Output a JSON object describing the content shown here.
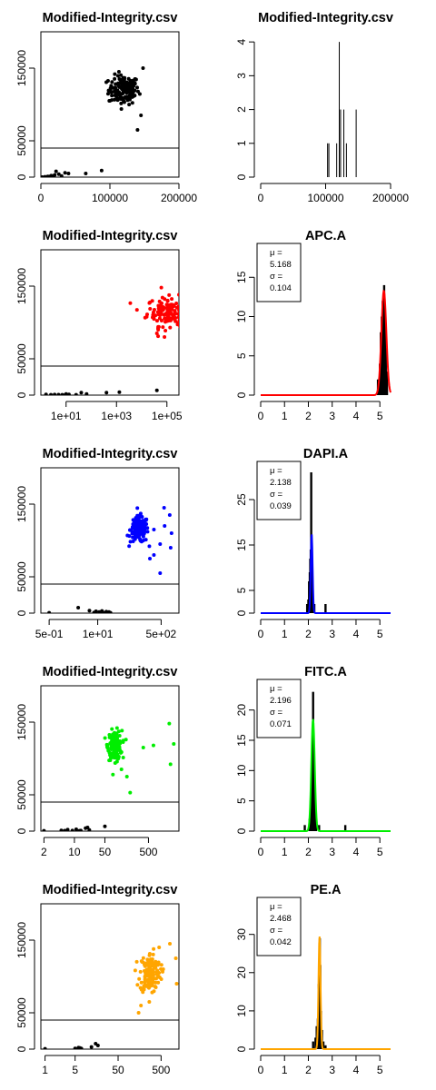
{
  "chart_data": [
    {
      "type": "scatter",
      "title": "Modified-Integrity.csv",
      "xscale": "linear",
      "xlim": [
        0,
        200000
      ],
      "ylim": [
        0,
        200000
      ],
      "xticks": [
        {
          "v": 0,
          "label": "0"
        },
        {
          "v": 100000,
          "label": "100000"
        },
        {
          "v": 200000,
          "label": "200000"
        }
      ],
      "yticks": [
        {
          "v": 0,
          "label": "0"
        },
        {
          "v": 50000,
          "label": "50000"
        },
        {
          "v": 150000,
          "label": "150000"
        }
      ],
      "threshold": 40000,
      "gate_color": "#000000",
      "cluster": {
        "cx": 120000,
        "cy": 120000,
        "sx": 11000,
        "sy": 10000,
        "n": 150
      },
      "extra_points": [
        [
          148000,
          150000
        ],
        [
          140000,
          65000
        ],
        [
          145000,
          85000
        ],
        [
          100000,
          105000
        ]
      ],
      "low_points": [
        [
          2000,
          0
        ],
        [
          6000,
          500
        ],
        [
          10000,
          1000
        ],
        [
          15000,
          2000
        ],
        [
          20000,
          3000
        ],
        [
          22000,
          8000
        ],
        [
          26000,
          4000
        ],
        [
          30000,
          1500
        ],
        [
          35000,
          6000
        ],
        [
          40000,
          5000
        ],
        [
          65000,
          5000
        ],
        [
          88000,
          9000
        ],
        [
          12000,
          800
        ],
        [
          18000,
          1200
        ]
      ]
    },
    {
      "type": "bar",
      "title": "Modified-Integrity.csv",
      "xlim": [
        0,
        200000
      ],
      "ylim": [
        0,
        4.3
      ],
      "xticks": [
        {
          "v": 0,
          "label": "0"
        },
        {
          "v": 100000,
          "label": "100000"
        },
        {
          "v": 200000,
          "label": "200000"
        }
      ],
      "yticks": [
        {
          "v": 0,
          "label": "0"
        },
        {
          "v": 1,
          "label": "1"
        },
        {
          "v": 2,
          "label": "2"
        },
        {
          "v": 3,
          "label": "3"
        },
        {
          "v": 4,
          "label": "4"
        }
      ],
      "bars": [
        [
          103000,
          1
        ],
        [
          105000,
          1
        ],
        [
          117000,
          1
        ],
        [
          121000,
          4
        ],
        [
          123000,
          2
        ],
        [
          128000,
          2
        ],
        [
          132000,
          1
        ],
        [
          147000,
          2
        ]
      ]
    },
    {
      "type": "scatter",
      "title": "Modified-Integrity.csv",
      "xscale": "log",
      "xlim": [
        1,
        300000
      ],
      "ylim": [
        0,
        200000
      ],
      "xticks": [
        {
          "v": 10,
          "label": "1e+01"
        },
        {
          "v": 1000,
          "label": "1e+03"
        },
        {
          "v": 100000,
          "label": "1e+05"
        }
      ],
      "yticks": [
        {
          "v": 0,
          "label": "0"
        },
        {
          "v": 50000,
          "label": "50000"
        },
        {
          "v": 150000,
          "label": "150000"
        }
      ],
      "threshold": 40000,
      "gate_color": "#ff0000",
      "cluster": {
        "cx": 130000,
        "cy": 115000,
        "sx": 0.45,
        "sy": 10000,
        "n": 150
      },
      "extra_points": [
        [
          60000,
          148000
        ],
        [
          45000,
          90000
        ],
        [
          40000,
          85000
        ],
        [
          80000,
          80000
        ]
      ],
      "low_points": [
        [
          1.6,
          1000
        ],
        [
          2.5,
          500
        ],
        [
          3.5,
          800
        ],
        [
          5,
          600
        ],
        [
          7,
          400
        ],
        [
          10,
          1500
        ],
        [
          13,
          900
        ],
        [
          25,
          500
        ],
        [
          40,
          3500
        ],
        [
          65,
          1500
        ],
        [
          400,
          3500
        ],
        [
          1300,
          4000
        ],
        [
          40000,
          6500
        ],
        [
          7.5,
          200
        ]
      ]
    },
    {
      "type": "histogram",
      "title": "APC.A",
      "xlim": [
        0,
        5.45
      ],
      "ylim": [
        0,
        18.5
      ],
      "xticks": [
        {
          "v": 0,
          "label": "0"
        },
        {
          "v": 1,
          "label": "1"
        },
        {
          "v": 2,
          "label": "2"
        },
        {
          "v": 3,
          "label": "3"
        },
        {
          "v": 4,
          "label": "4"
        },
        {
          "v": 5,
          "label": "5"
        }
      ],
      "yticks": [
        {
          "v": 0,
          "label": "0"
        },
        {
          "v": 5,
          "label": "5"
        },
        {
          "v": 10,
          "label": "10"
        },
        {
          "v": 15,
          "label": "15"
        }
      ],
      "bars": [
        [
          4.92,
          2
        ],
        [
          4.96,
          1
        ],
        [
          5.0,
          4
        ],
        [
          5.04,
          8
        ],
        [
          5.08,
          10
        ],
        [
          5.12,
          12
        ],
        [
          5.14,
          9
        ],
        [
          5.16,
          13
        ],
        [
          5.18,
          14
        ],
        [
          5.2,
          10
        ],
        [
          5.22,
          8
        ],
        [
          5.25,
          6
        ],
        [
          5.3,
          3
        ]
      ],
      "fit_color": "#ff0000",
      "mu": 5.168,
      "sigma": 0.104,
      "peak": 13.3,
      "stats": {
        "mu_label": "μ =",
        "mu": "5.168",
        "sigma_label": "σ =",
        "sigma": "0.104"
      }
    },
    {
      "type": "scatter",
      "title": "Modified-Integrity.csv",
      "xscale": "log",
      "xlim": [
        0.3,
        1500
      ],
      "ylim": [
        0,
        200000
      ],
      "xticks": [
        {
          "v": 0.5,
          "label": "5e-01"
        },
        {
          "v": 10,
          "label": "1e+01"
        },
        {
          "v": 500,
          "label": "5e+02"
        }
      ],
      "yticks": [
        {
          "v": 0,
          "label": "0"
        },
        {
          "v": 50000,
          "label": "50000"
        },
        {
          "v": 150000,
          "label": "150000"
        }
      ],
      "threshold": 40000,
      "gate_color": "#0000ff",
      "cluster": {
        "cx": 130,
        "cy": 115000,
        "sx": 0.12,
        "sy": 9000,
        "n": 150
      },
      "extra_points": [
        [
          600,
          145000
        ],
        [
          850,
          135000
        ],
        [
          620,
          120000
        ],
        [
          320,
          115000
        ],
        [
          950,
          110000
        ],
        [
          900,
          90000
        ],
        [
          320,
          80000
        ],
        [
          470,
          55000
        ],
        [
          250,
          75000
        ],
        [
          470,
          95000
        ]
      ],
      "low_points": [
        [
          0.5,
          500
        ],
        [
          3,
          7500
        ],
        [
          6,
          3500
        ],
        [
          8,
          500
        ],
        [
          9,
          2500
        ],
        [
          11,
          1500
        ],
        [
          13,
          3000
        ],
        [
          15,
          500
        ],
        [
          17,
          2000
        ],
        [
          20,
          1500
        ],
        [
          22,
          500
        ],
        [
          8,
          800
        ],
        [
          12,
          700
        ]
      ]
    },
    {
      "type": "histogram",
      "title": "DAPI.A",
      "xlim": [
        0,
        5.45
      ],
      "ylim": [
        0,
        32
      ],
      "xticks": [
        {
          "v": 0,
          "label": "0"
        },
        {
          "v": 1,
          "label": "1"
        },
        {
          "v": 2,
          "label": "2"
        },
        {
          "v": 3,
          "label": "3"
        },
        {
          "v": 4,
          "label": "4"
        },
        {
          "v": 5,
          "label": "5"
        }
      ],
      "yticks": [
        {
          "v": 0,
          "label": "0"
        },
        {
          "v": 5,
          "label": "5"
        },
        {
          "v": 15,
          "label": "15"
        },
        {
          "v": 25,
          "label": "25"
        }
      ],
      "bars": [
        [
          1.95,
          2
        ],
        [
          2.0,
          3
        ],
        [
          2.03,
          7
        ],
        [
          2.06,
          9
        ],
        [
          2.08,
          12
        ],
        [
          2.1,
          14
        ],
        [
          2.12,
          31
        ],
        [
          2.14,
          15
        ],
        [
          2.16,
          9
        ],
        [
          2.18,
          6
        ],
        [
          2.2,
          3
        ],
        [
          2.25,
          2
        ],
        [
          2.72,
          2
        ]
      ],
      "fit_color": "#0000ff",
      "mu": 2.138,
      "sigma": 0.039,
      "peak": 17.5,
      "stats": {
        "mu_label": "μ =",
        "mu": "2.138",
        "sigma_label": "σ =",
        "sigma": "0.039"
      }
    },
    {
      "type": "scatter",
      "title": "Modified-Integrity.csv",
      "xscale": "log",
      "xlim": [
        1.7,
        2500
      ],
      "ylim": [
        0,
        200000
      ],
      "xticks": [
        {
          "v": 2,
          "label": "2"
        },
        {
          "v": 10,
          "label": "10"
        },
        {
          "v": 50,
          "label": "50"
        },
        {
          "v": 500,
          "label": "500"
        }
      ],
      "yticks": [
        {
          "v": 0,
          "label": "0"
        },
        {
          "v": 50000,
          "label": "50000"
        },
        {
          "v": 150000,
          "label": "150000"
        }
      ],
      "threshold": 40000,
      "gate_color": "#00ee00",
      "cluster": {
        "cx": 85,
        "cy": 118000,
        "sx": 0.08,
        "sy": 10000,
        "n": 150
      },
      "extra_points": [
        [
          1500,
          148000
        ],
        [
          1900,
          120000
        ],
        [
          1600,
          92000
        ],
        [
          650,
          118000
        ],
        [
          380,
          115000
        ],
        [
          160,
          75000
        ],
        [
          190,
          53000
        ],
        [
          120,
          85000
        ]
      ],
      "low_points": [
        [
          2,
          500
        ],
        [
          5,
          1000
        ],
        [
          7,
          2000
        ],
        [
          9,
          800
        ],
        [
          11,
          2500
        ],
        [
          14,
          800
        ],
        [
          18,
          4000
        ],
        [
          20,
          5000
        ],
        [
          22,
          1500
        ],
        [
          50,
          6500
        ],
        [
          13,
          400
        ],
        [
          6,
          600
        ]
      ]
    },
    {
      "type": "histogram",
      "title": "FITC.A",
      "xlim": [
        0,
        5.45
      ],
      "ylim": [
        0,
        24
      ],
      "xticks": [
        {
          "v": 0,
          "label": "0"
        },
        {
          "v": 1,
          "label": "1"
        },
        {
          "v": 2,
          "label": "2"
        },
        {
          "v": 3,
          "label": "3"
        },
        {
          "v": 4,
          "label": "4"
        },
        {
          "v": 5,
          "label": "5"
        }
      ],
      "yticks": [
        {
          "v": 0,
          "label": "0"
        },
        {
          "v": 5,
          "label": "5"
        },
        {
          "v": 10,
          "label": "10"
        },
        {
          "v": 15,
          "label": "15"
        },
        {
          "v": 20,
          "label": "20"
        }
      ],
      "bars": [
        [
          1.85,
          1
        ],
        [
          2.05,
          2
        ],
        [
          2.1,
          5
        ],
        [
          2.13,
          9
        ],
        [
          2.16,
          12
        ],
        [
          2.18,
          17
        ],
        [
          2.2,
          23
        ],
        [
          2.22,
          14
        ],
        [
          2.24,
          8
        ],
        [
          2.27,
          5
        ],
        [
          2.32,
          2
        ],
        [
          2.45,
          1
        ],
        [
          3.55,
          1
        ]
      ],
      "fit_color": "#00ee00",
      "mu": 2.196,
      "sigma": 0.071,
      "peak": 18.5,
      "stats": {
        "mu_label": "μ =",
        "mu": "2.196",
        "sigma_label": "σ =",
        "sigma": "0.071"
      }
    },
    {
      "type": "scatter",
      "title": "Modified-Integrity.csv",
      "xscale": "log",
      "xlim": [
        0.8,
        1300
      ],
      "ylim": [
        0,
        200000
      ],
      "xticks": [
        {
          "v": 1,
          "label": "1"
        },
        {
          "v": 5,
          "label": "5"
        },
        {
          "v": 50,
          "label": "50"
        },
        {
          "v": 500,
          "label": "500"
        }
      ],
      "yticks": [
        {
          "v": 0,
          "label": "0"
        },
        {
          "v": 50000,
          "label": "50000"
        },
        {
          "v": 150000,
          "label": "150000"
        }
      ],
      "threshold": 40000,
      "gate_color": "#ffa500",
      "cluster": {
        "cx": 280,
        "cy": 105000,
        "sx": 0.12,
        "sy": 14000,
        "n": 160
      },
      "extra_points": [
        [
          800,
          145000
        ],
        [
          1100,
          125000
        ],
        [
          1150,
          90000
        ],
        [
          560,
          110000
        ],
        [
          150,
          50000
        ],
        [
          170,
          60000
        ],
        [
          450,
          140000
        ]
      ],
      "low_points": [
        [
          1,
          500
        ],
        [
          5,
          1000
        ],
        [
          6,
          2000
        ],
        [
          7,
          800
        ],
        [
          12,
          3000
        ],
        [
          15,
          7500
        ],
        [
          17,
          5000
        ],
        [
          6.5,
          1500
        ]
      ]
    },
    {
      "type": "histogram",
      "title": "PE.A",
      "xlim": [
        0,
        5.45
      ],
      "ylim": [
        0,
        38
      ],
      "xticks": [
        {
          "v": 0,
          "label": "0"
        },
        {
          "v": 1,
          "label": "1"
        },
        {
          "v": 2,
          "label": "2"
        },
        {
          "v": 3,
          "label": "3"
        },
        {
          "v": 4,
          "label": "4"
        },
        {
          "v": 5,
          "label": "5"
        }
      ],
      "yticks": [
        {
          "v": 0,
          "label": "0"
        },
        {
          "v": 10,
          "label": "10"
        },
        {
          "v": 20,
          "label": "20"
        },
        {
          "v": 30,
          "label": "30"
        }
      ],
      "bars": [
        [
          2.2,
          2
        ],
        [
          2.3,
          3
        ],
        [
          2.35,
          6
        ],
        [
          2.4,
          8
        ],
        [
          2.43,
          17
        ],
        [
          2.46,
          14
        ],
        [
          2.48,
          29
        ],
        [
          2.5,
          22
        ],
        [
          2.53,
          10
        ],
        [
          2.57,
          5
        ],
        [
          2.63,
          2
        ],
        [
          2.72,
          1
        ]
      ],
      "fit_color": "#ffa500",
      "mu": 2.468,
      "sigma": 0.042,
      "peak": 29.5,
      "stats": {
        "mu_label": "μ =",
        "mu": "2.468",
        "sigma_label": "σ =",
        "sigma": "0.042"
      }
    }
  ]
}
